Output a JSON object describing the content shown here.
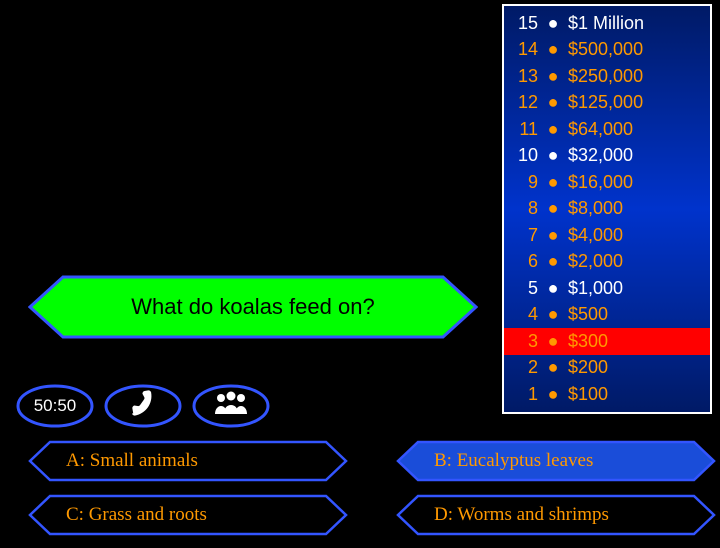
{
  "question": {
    "text": "What do koalas feed on?",
    "bg_color": "#00ff00",
    "text_color": "#000000",
    "stroke": "#3355ff"
  },
  "answers": {
    "a": {
      "prefix": "A:",
      "text": "Small animals",
      "bg": "#000000",
      "label_color": "#ff9900"
    },
    "b": {
      "prefix": "B:",
      "text": "Eucalyptus leaves",
      "bg": "#1a4dd9",
      "label_color": "#ff9900"
    },
    "c": {
      "prefix": "C:",
      "text": "Grass and roots",
      "bg": "#000000",
      "label_color": "#ff9900"
    },
    "d": {
      "prefix": "D:",
      "text": "Worms and shrimps",
      "bg": "#000000",
      "label_color": "#ff9900"
    },
    "stroke": "#3355ff"
  },
  "lifelines": {
    "fifty": "50:50",
    "stroke": "#3355ff",
    "bg": "#000000",
    "text_color": "#ffffff"
  },
  "ladder": {
    "highlight_level": 3,
    "highlight_bg": "#ff0000",
    "dot_color_safe": "#ffffff",
    "dot_color_normal": "#ff9900",
    "num_color_safe": "#ffffff",
    "num_color_normal": "#ff9900",
    "amount_color_safe": "#ffffff",
    "amount_color_normal": "#ff9900",
    "rows": [
      {
        "level": 15,
        "amount": "$1 Million",
        "safe": true
      },
      {
        "level": 14,
        "amount": "$500,000",
        "safe": false
      },
      {
        "level": 13,
        "amount": "$250,000",
        "safe": false
      },
      {
        "level": 12,
        "amount": "$125,000",
        "safe": false
      },
      {
        "level": 11,
        "amount": "$64,000",
        "safe": false
      },
      {
        "level": 10,
        "amount": "$32,000",
        "safe": true
      },
      {
        "level": 9,
        "amount": "$16,000",
        "safe": false
      },
      {
        "level": 8,
        "amount": "$8,000",
        "safe": false
      },
      {
        "level": 7,
        "amount": "$4,000",
        "safe": false
      },
      {
        "level": 6,
        "amount": "$2,000",
        "safe": false
      },
      {
        "level": 5,
        "amount": "$1,000",
        "safe": true
      },
      {
        "level": 4,
        "amount": "$500",
        "safe": false
      },
      {
        "level": 3,
        "amount": "$300",
        "safe": false
      },
      {
        "level": 2,
        "amount": "$200",
        "safe": false
      },
      {
        "level": 1,
        "amount": "$100",
        "safe": false
      }
    ]
  }
}
